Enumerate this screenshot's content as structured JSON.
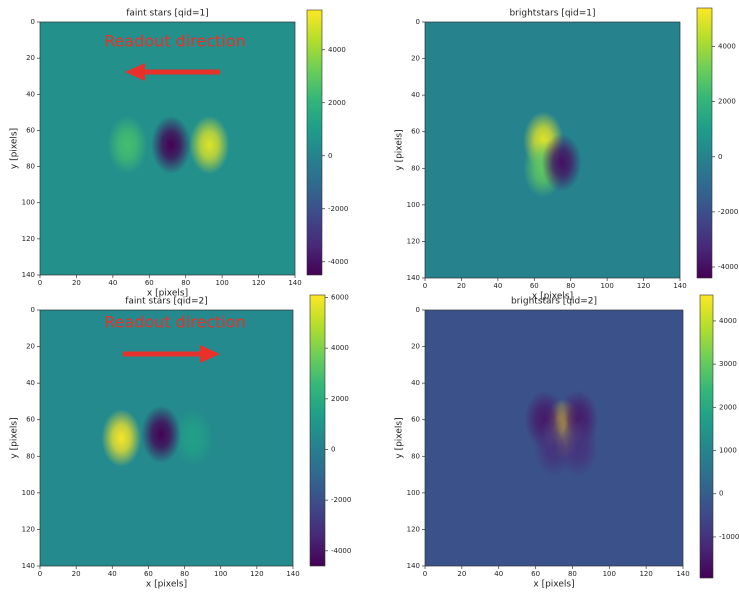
{
  "chart_data": [
    {
      "type": "heatmap",
      "title": "faint stars [qid=1]",
      "xlabel": "x [pixels]",
      "ylabel": "y [pixels]",
      "annotation": "Readout direction",
      "xlim": [
        0,
        140
      ],
      "ylim": [
        140,
        0
      ],
      "xticks": [
        0,
        20,
        40,
        60,
        80,
        100,
        120,
        140
      ],
      "yticks": [
        0,
        20,
        40,
        60,
        80,
        100,
        120,
        140
      ],
      "colormap": "viridis",
      "clim": [
        -4500,
        5500
      ],
      "cticks": [
        -4000,
        -2000,
        0,
        2000,
        4000
      ],
      "background": 500,
      "blobs": [
        {
          "x": 93,
          "y": 68,
          "value": 5000
        },
        {
          "x": 48,
          "y": 68,
          "value": 2500
        },
        {
          "x": 72,
          "y": 68,
          "value": -4500
        }
      ]
    },
    {
      "type": "heatmap",
      "title": "brightstars [qid=1]",
      "xlabel": "x [pixels]",
      "ylabel": "y [pixels]",
      "xlim": [
        0,
        140
      ],
      "ylim": [
        140,
        0
      ],
      "xticks": [
        0,
        20,
        40,
        60,
        80,
        100,
        120,
        140
      ],
      "yticks": [
        0,
        20,
        40,
        60,
        80,
        100,
        120,
        140
      ],
      "colormap": "viridis",
      "clim": [
        -4400,
        5400
      ],
      "cticks": [
        -4000,
        -2000,
        0,
        2000,
        4000
      ],
      "background": 0,
      "blobs": [
        {
          "x": 65,
          "y": 65,
          "value": 5000
        },
        {
          "x": 65,
          "y": 80,
          "value": 3000
        },
        {
          "x": 75,
          "y": 77,
          "value": -4000
        }
      ]
    },
    {
      "type": "heatmap",
      "title": "faint stars [qid=2]",
      "xlabel": "x [pixels]",
      "ylabel": "y [pixels]",
      "annotation": "Readout direction",
      "xlim": [
        0,
        140
      ],
      "ylim": [
        140,
        0
      ],
      "xticks": [
        0,
        20,
        40,
        60,
        80,
        100,
        120,
        140
      ],
      "yticks": [
        0,
        20,
        40,
        60,
        80,
        100,
        120,
        140
      ],
      "colormap": "viridis",
      "clim": [
        -4600,
        6100
      ],
      "cticks": [
        -4000,
        -2000,
        0,
        2000,
        4000,
        6000
      ],
      "background": 500,
      "blobs": [
        {
          "x": 45,
          "y": 70,
          "value": 6000
        },
        {
          "x": 85,
          "y": 70,
          "value": 1500
        },
        {
          "x": 67,
          "y": 68,
          "value": -4600
        }
      ]
    },
    {
      "type": "heatmap",
      "title": "brightstars [qid=2]",
      "xlabel": "x [pixels]",
      "ylabel": "y [pixels]",
      "xlim": [
        0,
        140
      ],
      "ylim": [
        140,
        0
      ],
      "xticks": [
        0,
        20,
        40,
        60,
        80,
        100,
        120,
        140
      ],
      "yticks": [
        0,
        20,
        40,
        60,
        80,
        100,
        120,
        140
      ],
      "colormap": "viridis",
      "clim": [
        -1950,
        4600
      ],
      "cticks": [
        -1000,
        0,
        1000,
        2000,
        3000,
        4000
      ],
      "background": -300,
      "blobs": [
        {
          "x": 75,
          "y": 65,
          "value": 4500
        },
        {
          "x": 65,
          "y": 60,
          "value": -1500
        },
        {
          "x": 83,
          "y": 60,
          "value": -1500
        },
        {
          "x": 70,
          "y": 75,
          "value": -1000
        },
        {
          "x": 83,
          "y": 75,
          "value": -1000
        }
      ]
    }
  ]
}
